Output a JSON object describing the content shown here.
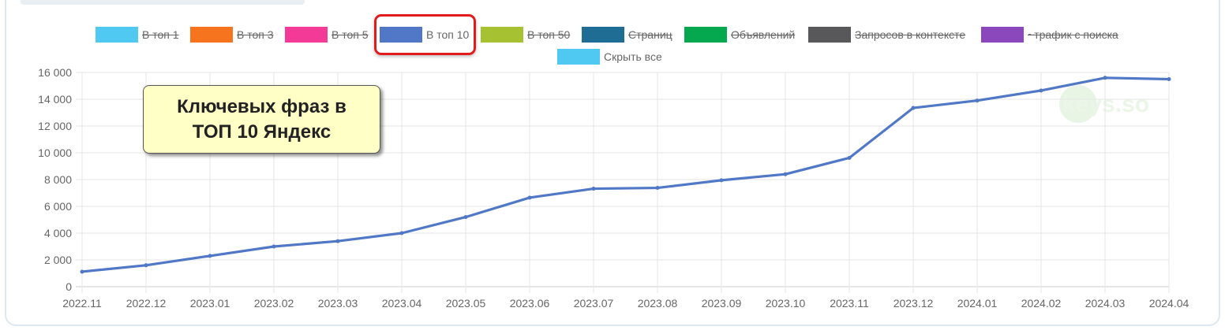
{
  "legend": [
    {
      "label": "В топ 1",
      "color": "#4fc9f2",
      "hidden": true
    },
    {
      "label": "В топ 3",
      "color": "#f7741f",
      "hidden": true
    },
    {
      "label": "В топ 5",
      "color": "#f23a96",
      "hidden": true
    },
    {
      "label": "В топ 10",
      "color": "#5078c6",
      "hidden": false
    },
    {
      "label": "В топ 50",
      "color": "#a6c232",
      "hidden": true
    },
    {
      "label": "Страниц",
      "color": "#1f6c94",
      "hidden": true
    },
    {
      "label": "Объявлений",
      "color": "#05a84f",
      "hidden": true
    },
    {
      "label": "Запросов в контексте",
      "color": "#58585b",
      "hidden": true
    },
    {
      "label": "~трафик с поиска",
      "color": "#8b48bd",
      "hidden": true
    },
    {
      "label": "Скрыть все",
      "color": "#4fc9f2",
      "hidden": false
    }
  ],
  "callout": {
    "line1": "Ключевых фраз в",
    "line2": "ТОП 10 Яндекс"
  },
  "watermark": "keys.so",
  "chart_data": {
    "type": "line",
    "x": [
      "2022.11",
      "2022.12",
      "2023.01",
      "2023.02",
      "2023.03",
      "2023.04",
      "2023.05",
      "2023.06",
      "2023.07",
      "2023.08",
      "2023.09",
      "2023.10",
      "2023.11",
      "2023.12",
      "2024.01",
      "2024.02",
      "2024.03",
      "2024.04"
    ],
    "series": [
      {
        "name": "В топ 10",
        "color": "#5078c6",
        "values": [
          1120,
          1600,
          2300,
          3000,
          3400,
          4000,
          5200,
          6650,
          7320,
          7380,
          7950,
          8400,
          9620,
          13350,
          13900,
          14650,
          15600,
          15500
        ]
      }
    ],
    "y_ticks": [
      "0",
      "2 000",
      "4 000",
      "6 000",
      "8 000",
      "10 000",
      "12 000",
      "14 000",
      "16 000"
    ],
    "ylim": [
      0,
      16000
    ],
    "grid": true,
    "legend_position": "top"
  }
}
